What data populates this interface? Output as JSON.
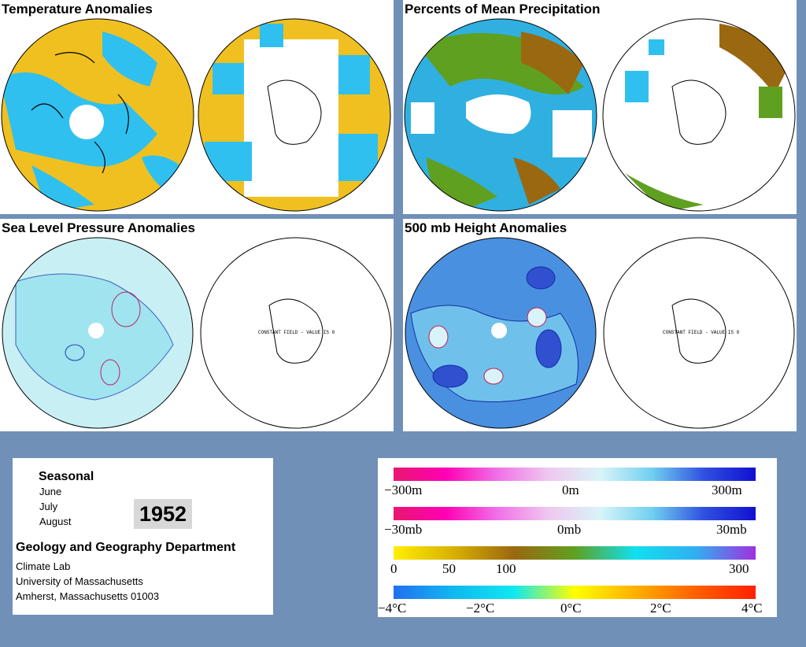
{
  "panels": {
    "temperature": {
      "title": "Temperature Anomalies"
    },
    "precipitation": {
      "title": "Percents of Mean Precipitation"
    },
    "pressure": {
      "title": "Sea Level Pressure Anomalies",
      "note": "CONSTANT FIELD - VALUE IS 0"
    },
    "height": {
      "title": "500 mb Height Anomalies",
      "note": "CONSTANT FIELD - VALUE IS 0"
    }
  },
  "info": {
    "season": "Seasonal",
    "months": [
      "June",
      "July",
      "August"
    ],
    "year": "1952",
    "department": "Geology and Geography Department",
    "address": [
      "Climate Lab",
      "University of Massachusetts",
      "Amherst, Massachusetts 01003"
    ]
  },
  "legends": {
    "height": {
      "labels": [
        "−300m",
        "0m",
        "300m"
      ],
      "colors": [
        "#e8186f",
        "#ff00b4",
        "#f070e8",
        "#f0c8f0",
        "#d8f4f8",
        "#70d0f0",
        "#3050e0",
        "#1010d0"
      ]
    },
    "pressure": {
      "labels": [
        "−30mb",
        "0mb",
        "30mb"
      ],
      "colors": [
        "#e8186f",
        "#ff00b4",
        "#f070e8",
        "#f0c8f0",
        "#d8f4f8",
        "#70d0f0",
        "#3050e0",
        "#1010d0"
      ]
    },
    "precipitation": {
      "labels": [
        "0",
        "50",
        "100",
        "300"
      ],
      "colors": [
        "#ffee00",
        "#d8b000",
        "#9a6810",
        "#60a020",
        "#10e0f0",
        "#30b0f0",
        "#a030e0"
      ]
    },
    "temperature": {
      "labels": [
        "−4°C",
        "−2°C",
        "0°C",
        "2°C",
        "4°C"
      ],
      "colors": [
        "#2070f0",
        "#10b8f0",
        "#10e8f0",
        "#ffff00",
        "#ffb000",
        "#ff6000",
        "#ff2000"
      ]
    }
  },
  "colors": {
    "background": "#7090b8",
    "temp_warm": "#f0c020",
    "temp_cool": "#30c0f0",
    "pressure_fill": "#c8f0f4",
    "height_fill": "#4a90e0"
  }
}
